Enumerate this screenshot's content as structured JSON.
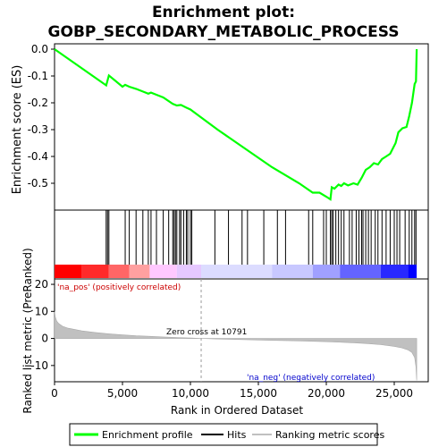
{
  "chart_data": {
    "type": "line",
    "title_line1": "Enrichment plot:",
    "title_line2": "GOBP_SECONDARY_METABOLIC_PROCESS",
    "xlabel": "Rank in Ordered Dataset",
    "xlim": [
      0,
      27500
    ],
    "x_ticks": [
      0,
      5000,
      10000,
      15000,
      20000,
      25000
    ],
    "x_tick_labels": [
      "0",
      "5,000",
      "10,000",
      "15,000",
      "20,000",
      "25,000"
    ],
    "es_panel": {
      "ylabel": "Enrichment score (ES)",
      "ylim": [
        -0.6,
        0.02
      ],
      "y_ticks": [
        0.0,
        -0.1,
        -0.2,
        -0.3,
        -0.4,
        -0.5
      ],
      "y_tick_labels": [
        "0.0",
        "-0.1",
        "-0.2",
        "-0.3",
        "-0.4",
        "-0.5"
      ],
      "line_color": "#00ff00",
      "series": [
        {
          "x": [
            0,
            3800,
            4000,
            5000,
            5200,
            5500,
            6000,
            6500,
            6900,
            7100,
            7500,
            8000,
            8700,
            9000,
            9300,
            9700,
            10000,
            12000,
            14000,
            16000,
            18000,
            19000,
            19500,
            20000,
            20300,
            20400,
            20600,
            20900,
            21100,
            21300,
            21600,
            22000,
            22300,
            22600,
            22900,
            23200,
            23500,
            23800,
            24100,
            24400,
            24700,
            25100,
            25300,
            25600,
            25900,
            26100,
            26300,
            26500,
            26600,
            26650
          ],
          "y": [
            0.0,
            -0.135,
            -0.098,
            -0.14,
            -0.133,
            -0.14,
            -0.148,
            -0.158,
            -0.166,
            -0.162,
            -0.17,
            -0.18,
            -0.204,
            -0.21,
            -0.208,
            -0.218,
            -0.225,
            -0.3,
            -0.37,
            -0.44,
            -0.5,
            -0.535,
            -0.535,
            -0.55,
            -0.56,
            -0.515,
            -0.52,
            -0.505,
            -0.51,
            -0.5,
            -0.508,
            -0.5,
            -0.505,
            -0.48,
            -0.45,
            -0.44,
            -0.425,
            -0.43,
            -0.41,
            -0.4,
            -0.39,
            -0.35,
            -0.31,
            -0.295,
            -0.29,
            -0.25,
            -0.2,
            -0.13,
            -0.12,
            0.0
          ]
        }
      ]
    },
    "hits": {
      "color": "#000000",
      "positions": [
        3800,
        3900,
        4000,
        5200,
        5500,
        6000,
        6500,
        6900,
        7100,
        7500,
        8000,
        8400,
        8700,
        8800,
        8900,
        9000,
        9200,
        9300,
        9500,
        9700,
        9800,
        10000,
        10100,
        11800,
        12800,
        13800,
        14200,
        15400,
        16400,
        17000,
        18700,
        19000,
        19800,
        20000,
        20300,
        20400,
        20500,
        20700,
        20900,
        21100,
        21300,
        21700,
        21900,
        22200,
        22400,
        22600,
        22700,
        22900,
        23100,
        23300,
        23600,
        23800,
        24100,
        24400,
        24700,
        25000,
        25200,
        25400,
        25800,
        26100,
        26300,
        26500,
        26600
      ]
    },
    "heatmap_bar": {
      "colors": [
        "#ff0000",
        "#ff2a2a",
        "#ff6666",
        "#ffa0a0",
        "#ffc8ff",
        "#e6c8ff",
        "#dcdcff",
        "#c8c8ff",
        "#a0a0ff",
        "#6464ff",
        "#2828ff",
        "#0000ff"
      ],
      "stops": [
        0,
        2000,
        4000,
        5500,
        7000,
        9000,
        10791,
        16000,
        19000,
        21000,
        24000,
        26000,
        26650
      ]
    },
    "metric_panel": {
      "ylabel": "Ranked list metric (PreRanked)",
      "ylim": [
        -16,
        22
      ],
      "y_ticks": [
        20,
        10,
        0,
        -10
      ],
      "y_tick_labels": [
        "20",
        "10",
        "0",
        "-10"
      ],
      "fill_color": "#c0c0c0",
      "series": [
        {
          "x": [
            0,
            50,
            150,
            300,
            600,
            1000,
            2000,
            3000,
            4000,
            5000,
            6000,
            7000,
            8000,
            9000,
            10000,
            10791,
            12000,
            14000,
            16000,
            18000,
            20000,
            22000,
            23000,
            24000,
            25000,
            25500,
            26000,
            26300,
            26500,
            26600,
            26650
          ],
          "y": [
            10.0,
            8.0,
            6.5,
            5.5,
            4.5,
            3.8,
            2.8,
            2.2,
            1.7,
            1.3,
            1.0,
            0.8,
            0.55,
            0.35,
            0.15,
            0.0,
            -0.2,
            -0.45,
            -0.7,
            -0.9,
            -1.2,
            -1.6,
            -1.9,
            -2.3,
            -2.9,
            -3.4,
            -4.2,
            -5.2,
            -7.0,
            -10.5,
            -15.5
          ]
        }
      ],
      "annotation_pos": "'na_pos' (positively correlated)",
      "annotation_neg": "'na_neg' (negatively correlated)",
      "zero_cross_label": "Zero cross at 10791",
      "zero_cross_x": 10791,
      "pos_label_color": "#cc0000",
      "neg_label_color": "#0000cc"
    },
    "legend": {
      "placement": "bottom",
      "items": [
        {
          "label": "Enrichment profile",
          "color": "#00ff00"
        },
        {
          "label": "Hits",
          "color": "#000000"
        },
        {
          "label": "Ranking metric scores",
          "color": "#c0c0c0"
        }
      ]
    }
  }
}
